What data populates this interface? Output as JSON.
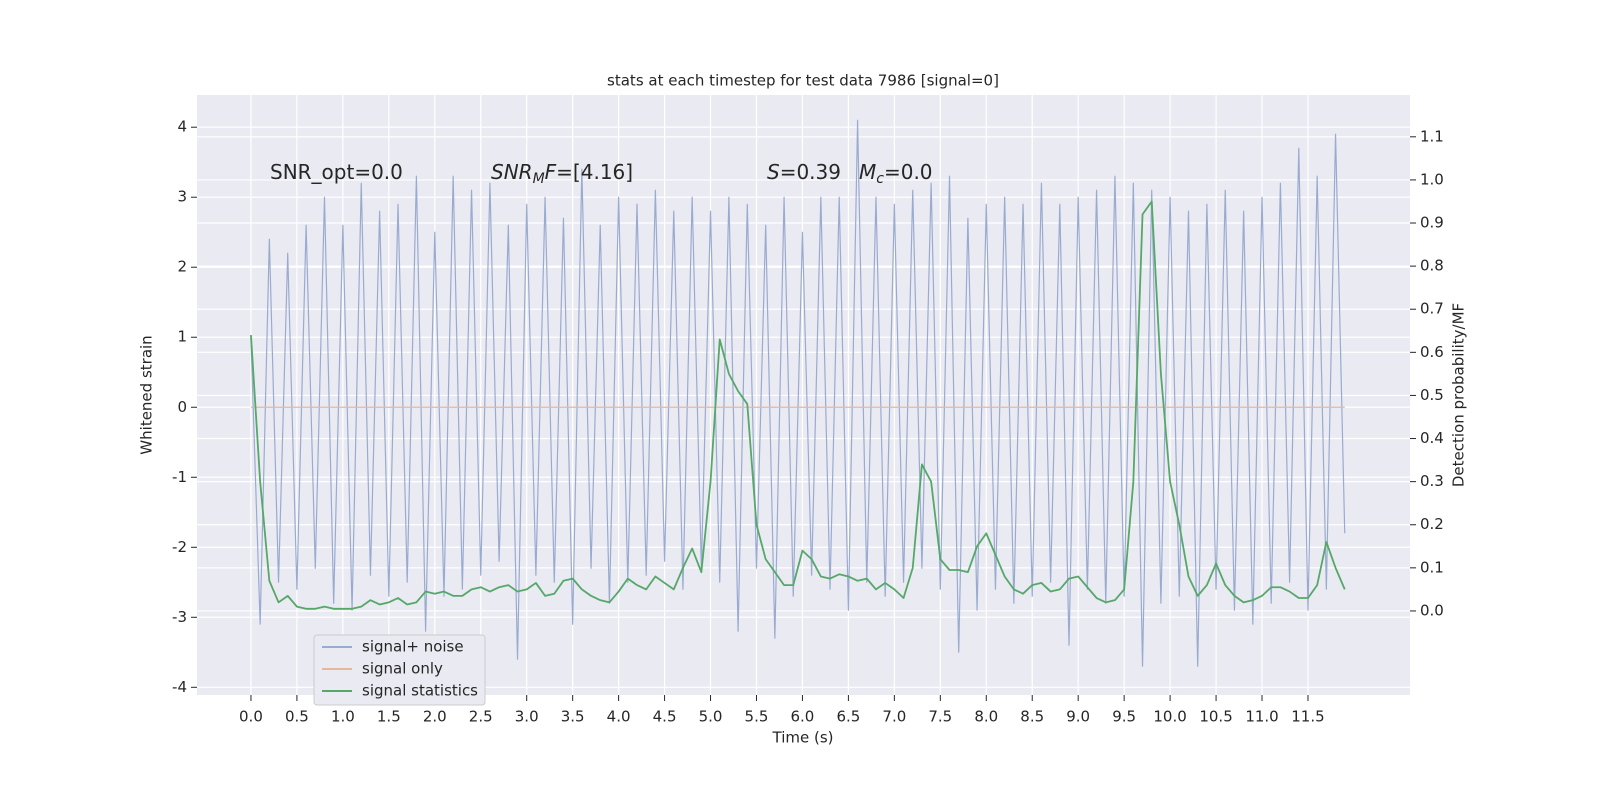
{
  "chart_data": {
    "type": "line",
    "title": "stats at each timestep for test data 7986 [signal=0]",
    "xlabel": "Time (s)",
    "ylabel": "Whitened strain",
    "y2label": "Detection probability/MF",
    "annotations": [
      [
        {
          "text": "SNR_opt=0.0"
        }
      ],
      [
        {
          "text": "SNR",
          "style": "italic"
        },
        {
          "text": "M",
          "style": "italic-sub"
        },
        {
          "text": "F",
          "style": "italic"
        },
        {
          "text": "=[4.16]"
        }
      ],
      [
        {
          "text": "S",
          "style": "italic"
        },
        {
          "text": "=0.39"
        }
      ],
      [
        {
          "text": "M",
          "style": "italic"
        },
        {
          "text": "c",
          "style": "italic-sub"
        },
        {
          "text": "=0.0"
        }
      ]
    ],
    "xlim": [
      -0.587,
      12.61
    ],
    "xticks": [
      {
        "value": 0,
        "label": "0.0"
      },
      0.5,
      {
        "value": 1,
        "label": "1.0"
      },
      1.5,
      {
        "value": 2,
        "label": "2.0"
      },
      2.5,
      {
        "value": 3,
        "label": "3.0"
      },
      3.5,
      {
        "value": 4,
        "label": "4.0"
      },
      4.5,
      {
        "value": 5,
        "label": "5.0"
      },
      5.5,
      {
        "value": 6,
        "label": "6.0"
      },
      6.5,
      {
        "value": 7,
        "label": "7.0"
      },
      7.5,
      {
        "value": 8,
        "label": "8.0"
      },
      8.5,
      {
        "value": 9,
        "label": "9.0"
      },
      9.5,
      {
        "value": 10,
        "label": "10.0"
      },
      10.5,
      {
        "value": 11,
        "label": "11.0"
      },
      11.5
    ],
    "ylim": [
      -4.11,
      4.46
    ],
    "yticks": [
      -4,
      -3,
      -2,
      -1,
      0,
      1,
      2,
      3,
      4
    ],
    "y2lim": [
      -0.195,
      1.197
    ],
    "y2ticks": [
      {
        "value": 0,
        "label": "0.0"
      },
      0.1,
      0.2,
      0.3,
      0.4,
      0.5,
      0.6,
      0.7,
      0.8,
      0.9,
      {
        "value": 1,
        "label": "1.0"
      },
      1.1
    ],
    "grid": true,
    "legend": "lower left",
    "x": [
      0,
      0.1,
      0.2,
      0.3,
      0.4,
      0.5,
      0.6,
      0.7,
      0.8,
      0.9,
      1,
      1.1,
      1.2,
      1.3,
      1.4,
      1.5,
      1.6,
      1.7,
      1.8,
      1.9,
      2,
      2.1,
      2.2,
      2.3,
      2.4,
      2.5,
      2.6,
      2.7,
      2.8,
      2.9,
      3,
      3.1,
      3.2,
      3.3,
      3.4,
      3.5,
      3.6,
      3.7,
      3.8,
      3.9,
      4,
      4.1,
      4.2,
      4.3,
      4.4,
      4.5,
      4.6,
      4.7,
      4.8,
      4.9,
      5,
      5.1,
      5.2,
      5.3,
      5.4,
      5.5,
      5.6,
      5.7,
      5.8,
      5.9,
      6,
      6.1,
      6.2,
      6.3,
      6.4,
      6.5,
      6.6,
      6.7,
      6.8,
      6.9,
      7,
      7.1,
      7.2,
      7.3,
      7.4,
      7.5,
      7.6,
      7.7,
      7.8,
      7.9,
      8,
      8.1,
      8.2,
      8.3,
      8.4,
      8.5,
      8.6,
      8.7,
      8.8,
      8.9,
      9,
      9.1,
      9.2,
      9.3,
      9.4,
      9.5,
      9.6,
      9.7,
      9.8,
      9.9,
      10,
      10.1,
      10.2,
      10.3,
      10.4,
      10.5,
      10.6,
      10.7,
      10.8,
      10.9,
      11,
      11.1,
      11.2,
      11.3,
      11.4,
      11.5,
      11.6,
      11.7,
      11.8,
      11.9
    ],
    "series": [
      {
        "name": "signal+ noise",
        "color": "#9aabd0",
        "values": [
          1.0,
          -3.1,
          2.4,
          -2.5,
          2.2,
          -2.6,
          2.6,
          -2.3,
          3.0,
          -2.8,
          2.6,
          -2.9,
          3.2,
          -2.4,
          2.8,
          -2.7,
          2.9,
          -2.5,
          3.3,
          -3.2,
          2.5,
          -2.7,
          3.3,
          -2.6,
          3.1,
          -2.4,
          3.2,
          -2.2,
          2.6,
          -3.6,
          2.9,
          -2.4,
          3.0,
          -2.5,
          2.7,
          -3.1,
          3.4,
          -2.3,
          2.6,
          -2.8,
          3.0,
          -2.5,
          2.9,
          -2.4,
          3.1,
          -2.2,
          2.8,
          -2.6,
          3.0,
          -2.3,
          2.8,
          -2.5,
          3.0,
          -3.2,
          2.9,
          -2.3,
          2.6,
          -3.3,
          3.0,
          -2.7,
          2.5,
          -2.4,
          3.0,
          -2.6,
          3.0,
          -2.9,
          4.1,
          -2.5,
          3.0,
          -2.7,
          2.9,
          -2.5,
          3.1,
          -2.3,
          3.2,
          -2.6,
          3.3,
          -3.5,
          2.7,
          -2.9,
          2.9,
          -2.6,
          3.0,
          -2.8,
          2.9,
          -2.7,
          3.2,
          -2.5,
          2.9,
          -3.4,
          3.0,
          -2.6,
          3.1,
          -2.8,
          3.3,
          -2.7,
          3.2,
          -3.7,
          3.1,
          -2.8,
          3.0,
          -2.7,
          2.8,
          -3.7,
          2.9,
          -2.6,
          3.1,
          -2.9,
          2.8,
          -3.1,
          3.0,
          -2.8,
          3.2,
          -2.5,
          3.7,
          -2.9,
          3.3,
          -2.6,
          3.9,
          -1.8
        ]
      },
      {
        "name": "signal only",
        "color": "#e8b69a",
        "values": [
          0,
          0,
          0,
          0,
          0,
          0,
          0,
          0,
          0,
          0,
          0,
          0,
          0,
          0,
          0,
          0,
          0,
          0,
          0,
          0,
          0,
          0,
          0,
          0,
          0,
          0,
          0,
          0,
          0,
          0,
          0,
          0,
          0,
          0,
          0,
          0,
          0,
          0,
          0,
          0,
          0,
          0,
          0,
          0,
          0,
          0,
          0,
          0,
          0,
          0,
          0,
          0,
          0,
          0,
          0,
          0,
          0,
          0,
          0,
          0,
          0,
          0,
          0,
          0,
          0,
          0,
          0,
          0,
          0,
          0,
          0,
          0,
          0,
          0,
          0,
          0,
          0,
          0,
          0,
          0,
          0,
          0,
          0,
          0,
          0,
          0,
          0,
          0,
          0,
          0,
          0,
          0,
          0,
          0,
          0,
          0,
          0,
          0,
          0,
          0,
          0,
          0,
          0,
          0,
          0,
          0,
          0,
          0,
          0,
          0,
          0,
          0,
          0,
          0,
          0,
          0,
          0,
          0,
          0,
          0
        ]
      },
      {
        "name": "signal statistics",
        "color": "#55a868",
        "axis": "y2",
        "values": [
          0.64,
          0.3,
          0.07,
          0.02,
          0.035,
          0.01,
          0.005,
          0.005,
          0.01,
          0.005,
          0.005,
          0.005,
          0.01,
          0.025,
          0.015,
          0.02,
          0.03,
          0.015,
          0.02,
          0.045,
          0.04,
          0.045,
          0.035,
          0.035,
          0.05,
          0.055,
          0.045,
          0.055,
          0.06,
          0.045,
          0.05,
          0.065,
          0.035,
          0.04,
          0.07,
          0.075,
          0.05,
          0.035,
          0.025,
          0.02,
          0.045,
          0.075,
          0.06,
          0.05,
          0.08,
          0.065,
          0.05,
          0.1,
          0.145,
          0.09,
          0.3,
          0.63,
          0.55,
          0.51,
          0.48,
          0.2,
          0.12,
          0.09,
          0.06,
          0.06,
          0.14,
          0.12,
          0.08,
          0.075,
          0.085,
          0.08,
          0.07,
          0.075,
          0.05,
          0.065,
          0.05,
          0.03,
          0.1,
          0.34,
          0.3,
          0.12,
          0.095,
          0.095,
          0.09,
          0.15,
          0.18,
          0.13,
          0.08,
          0.05,
          0.04,
          0.06,
          0.065,
          0.045,
          0.05,
          0.075,
          0.08,
          0.055,
          0.03,
          0.02,
          0.025,
          0.05,
          0.3,
          0.92,
          0.95,
          0.55,
          0.3,
          0.2,
          0.08,
          0.035,
          0.06,
          0.11,
          0.06,
          0.035,
          0.02,
          0.025,
          0.035,
          0.055,
          0.055,
          0.045,
          0.03,
          0.03,
          0.06,
          0.16,
          0.1,
          0.05
        ]
      }
    ]
  }
}
